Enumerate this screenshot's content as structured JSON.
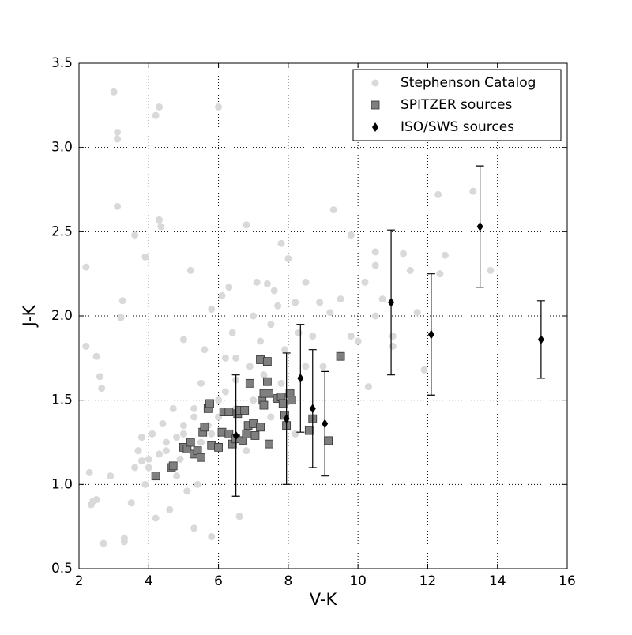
{
  "chart_data": {
    "type": "scatter",
    "xlabel": "V-K",
    "ylabel": "J-K",
    "xlim": [
      2,
      16
    ],
    "ylim": [
      0.5,
      3.5
    ],
    "xticks": [
      2,
      4,
      6,
      8,
      10,
      12,
      14,
      16
    ],
    "yticks": [
      0.5,
      {
        "value": 1,
        "label": "1.0"
      },
      1.5,
      {
        "value": 2,
        "label": "2.0"
      },
      2.5,
      {
        "value": 3,
        "label": "3.0"
      },
      3.5
    ],
    "grid": true,
    "legend": "upper right",
    "series": [
      {
        "name": "Stephenson Catalog",
        "color": "#d9d9d9",
        "marker": "circle",
        "x": [
          2.2,
          2.2,
          2.3,
          2.4,
          2.35,
          2.5,
          2.5,
          2.6,
          2.65,
          2.7,
          2.9,
          3.0,
          3.1,
          3.1,
          3.1,
          3.2,
          3.25,
          3.3,
          3.3,
          3.5,
          3.6,
          3.6,
          3.7,
          3.8,
          3.9,
          3.9,
          4.0,
          4.1,
          4.2,
          4.3,
          4.3,
          4.35,
          4.2,
          4.4,
          4.5,
          4.6,
          4.7,
          4.8,
          4.9,
          5.0,
          5.0,
          5.1,
          5.2,
          5.3,
          5.3,
          5.4,
          5.5,
          5.6,
          5.7,
          5.8,
          5.8,
          6.0,
          6.0,
          6.1,
          6.2,
          6.3,
          6.4,
          6.5,
          6.6,
          6.8,
          6.9,
          7.0,
          7.1,
          7.2,
          7.4,
          7.5,
          7.6,
          7.7,
          7.8,
          7.9,
          8.0,
          8.2,
          8.3,
          8.5,
          8.7,
          8.9,
          9.0,
          9.2,
          9.5,
          9.8,
          10.0,
          10.2,
          10.3,
          10.5,
          10.7,
          11.0,
          11.3,
          11.5,
          11.7,
          11.9,
          12.3,
          12.5,
          12.35,
          13.3,
          13.8,
          9.3,
          10.5,
          11.0,
          9.8,
          10.5,
          5.0,
          5.5,
          6.0,
          6.5,
          7.0,
          7.5,
          6.2,
          5.8,
          4.5,
          4.8,
          5.3,
          6.8,
          7.3,
          7.8,
          8.5,
          8.2,
          4.0,
          4.3,
          3.8,
          6.5
        ],
        "y": [
          2.29,
          1.82,
          1.07,
          0.9,
          0.88,
          0.91,
          1.76,
          1.64,
          1.57,
          0.65,
          1.05,
          3.33,
          3.09,
          3.05,
          2.65,
          1.99,
          2.09,
          0.68,
          0.66,
          0.89,
          2.48,
          1.1,
          1.2,
          1.28,
          2.35,
          1.0,
          1.15,
          1.3,
          3.19,
          3.24,
          2.57,
          2.53,
          0.8,
          1.36,
          1.2,
          0.85,
          1.45,
          1.05,
          1.15,
          1.86,
          1.3,
          0.96,
          2.27,
          1.4,
          0.74,
          1.0,
          1.6,
          1.8,
          1.35,
          2.04,
          0.69,
          3.24,
          1.5,
          2.12,
          1.75,
          2.17,
          1.9,
          1.62,
          0.81,
          2.54,
          1.7,
          2.0,
          2.2,
          1.85,
          2.19,
          1.95,
          2.15,
          2.06,
          2.43,
          1.8,
          2.34,
          2.08,
          1.9,
          2.2,
          1.88,
          2.08,
          1.7,
          2.02,
          2.1,
          2.48,
          1.85,
          2.2,
          1.58,
          2.0,
          2.1,
          1.82,
          2.37,
          2.27,
          2.02,
          1.68,
          2.72,
          2.36,
          2.25,
          2.74,
          2.27,
          2.63,
          2.38,
          1.88,
          1.88,
          2.3,
          1.35,
          1.25,
          1.4,
          1.45,
          1.5,
          1.4,
          1.55,
          1.3,
          1.25,
          1.28,
          1.45,
          1.2,
          1.65,
          1.6,
          1.7,
          1.3,
          1.1,
          1.18,
          1.14,
          1.75
        ]
      },
      {
        "name": "SPITZER sources",
        "color": "#7f7f7f",
        "marker": "square",
        "x": [
          4.2,
          4.65,
          4.7,
          5.0,
          5.1,
          5.2,
          5.3,
          5.4,
          5.5,
          5.55,
          5.6,
          5.7,
          5.75,
          5.8,
          6.0,
          6.1,
          6.15,
          6.3,
          6.3,
          6.4,
          6.5,
          6.55,
          6.6,
          6.7,
          6.8,
          6.75,
          6.85,
          6.9,
          7.0,
          7.05,
          7.2,
          7.2,
          7.25,
          7.3,
          7.3,
          7.4,
          7.4,
          7.45,
          7.45,
          7.7,
          7.8,
          7.85,
          7.9,
          7.95,
          8.05,
          8.1,
          8.6,
          8.7,
          9.15,
          9.5
        ],
        "y": [
          1.05,
          1.1,
          1.11,
          1.22,
          1.21,
          1.25,
          1.18,
          1.2,
          1.16,
          1.31,
          1.34,
          1.45,
          1.48,
          1.23,
          1.22,
          1.31,
          1.43,
          1.43,
          1.3,
          1.24,
          1.27,
          1.42,
          1.44,
          1.26,
          1.3,
          1.44,
          1.35,
          1.6,
          1.36,
          1.29,
          1.74,
          1.34,
          1.5,
          1.54,
          1.47,
          1.73,
          1.61,
          1.54,
          1.24,
          1.51,
          1.52,
          1.48,
          1.41,
          1.35,
          1.54,
          1.5,
          1.32,
          1.39,
          1.26,
          1.76
        ]
      },
      {
        "name": "ISO/SWS sources",
        "color": "#000000",
        "marker": "diamond",
        "x": [
          6.5,
          7.95,
          8.35,
          8.7,
          9.05,
          10.95,
          12.1,
          13.5,
          15.25
        ],
        "y": [
          1.29,
          1.39,
          1.63,
          1.45,
          1.36,
          2.08,
          1.89,
          2.53,
          1.86
        ],
        "yerr": [
          0.36,
          0.39,
          0.32,
          0.35,
          0.31,
          0.43,
          0.36,
          0.36,
          0.23
        ]
      }
    ]
  }
}
